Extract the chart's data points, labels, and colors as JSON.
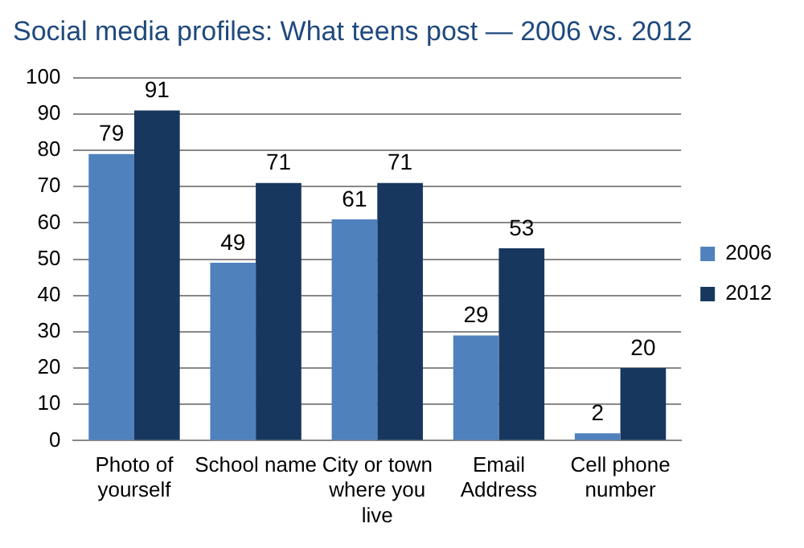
{
  "chart_data": {
    "type": "bar",
    "title": "Social media profiles: What teens post — 2006 vs. 2012",
    "categories": [
      "Photo of yourself",
      "School name",
      "City or town where you live",
      "Email Address",
      "Cell phone number"
    ],
    "series": [
      {
        "name": "2006",
        "color": "#4f81bd",
        "values": [
          79,
          49,
          61,
          29,
          2
        ]
      },
      {
        "name": "2012",
        "color": "#17375e",
        "values": [
          91,
          71,
          71,
          53,
          20
        ]
      }
    ],
    "ylim": [
      0,
      100
    ],
    "yticks": [
      0,
      10,
      20,
      30,
      40,
      50,
      60,
      70,
      80,
      90,
      100
    ],
    "grid": "y",
    "legend": "right",
    "data_labels": true
  }
}
